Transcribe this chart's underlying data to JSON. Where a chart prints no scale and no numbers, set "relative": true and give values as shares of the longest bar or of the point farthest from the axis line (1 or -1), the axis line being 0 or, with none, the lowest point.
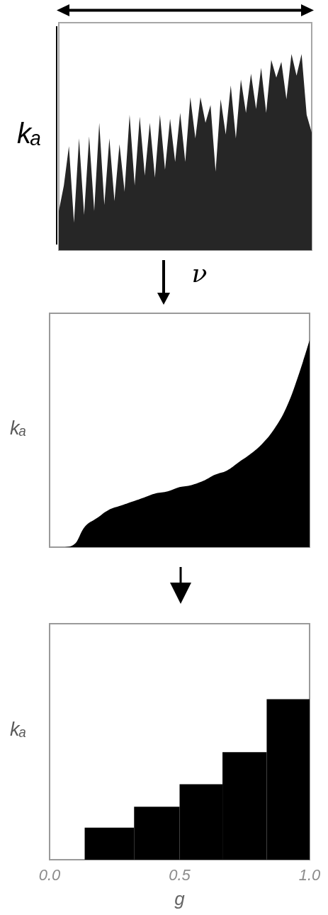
{
  "chart_data": [
    {
      "type": "area",
      "relative": true,
      "categories": [
        null,
        null,
        null,
        null,
        null,
        null,
        null,
        null,
        null,
        null,
        null,
        null,
        null,
        null,
        null,
        null,
        null,
        null,
        null,
        null,
        null,
        null,
        null,
        null,
        null,
        null,
        null,
        null,
        null,
        null,
        null,
        null,
        null,
        null,
        null,
        null,
        null,
        null,
        null,
        null,
        null,
        null,
        null,
        null,
        null,
        null,
        null,
        null,
        null,
        null,
        null
      ],
      "values": [
        0.2,
        0.33,
        0.53,
        0.14,
        0.57,
        0.18,
        0.58,
        0.2,
        0.65,
        0.23,
        0.57,
        0.25,
        0.54,
        0.3,
        0.69,
        0.33,
        0.68,
        0.38,
        0.65,
        0.37,
        0.69,
        0.41,
        0.67,
        0.45,
        0.7,
        0.45,
        0.78,
        0.57,
        0.78,
        0.65,
        0.74,
        0.4,
        0.77,
        0.59,
        0.84,
        0.57,
        0.87,
        0.7,
        0.9,
        0.72,
        0.93,
        0.7,
        0.97,
        0.88,
        0.96,
        0.77,
        1.0,
        0.89,
        1.0,
        0.69,
        0.6
      ],
      "color": "#262626",
      "xlabel": "ν",
      "ylabel": "kₐ"
    },
    {
      "type": "area",
      "relative": true,
      "categories": [
        null,
        null,
        null,
        null,
        null,
        null,
        null,
        null,
        null,
        null,
        null,
        null,
        null,
        null,
        null,
        null,
        null,
        null,
        null,
        null,
        null,
        null,
        null
      ],
      "values": [
        0,
        0,
        0.01,
        0.1,
        0.14,
        0.18,
        0.2,
        0.22,
        0.24,
        0.26,
        0.27,
        0.29,
        0.3,
        0.32,
        0.35,
        0.37,
        0.41,
        0.45,
        0.5,
        0.57,
        0.67,
        0.82,
        1.0
      ],
      "color": "#000000",
      "ylabel": "kₐ"
    },
    {
      "type": "bar",
      "relative": true,
      "x": [
        0.23,
        0.42,
        0.58,
        0.75,
        0.92
      ],
      "values": [
        0.2,
        0.33,
        0.47,
        0.67,
        1.0
      ],
      "color": "#000000",
      "xlim": [
        0,
        1
      ],
      "xticks": [
        {
          "value": 0,
          "label": "0.0"
        },
        {
          "value": 0.5,
          "label": "0.5"
        },
        {
          "value": 1,
          "label": "1.0"
        }
      ],
      "xlabel": "g",
      "ylabel": "kₐ",
      "tick_labels": "x"
    }
  ]
}
